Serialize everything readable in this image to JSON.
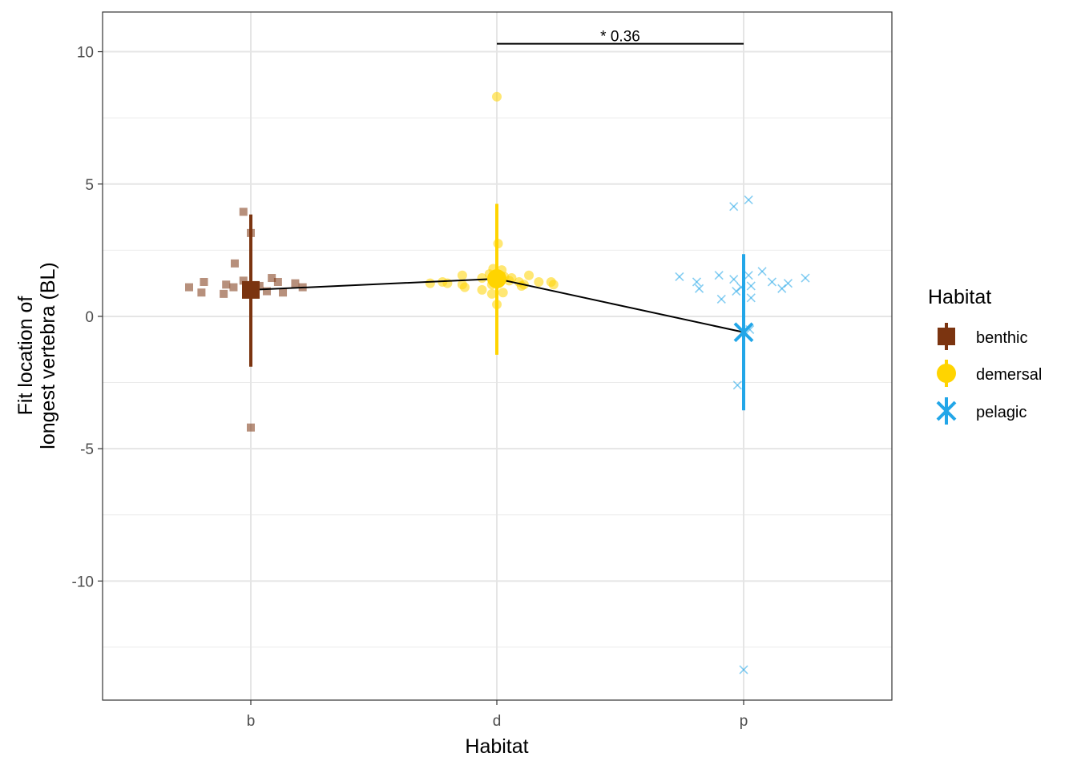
{
  "chart_data": {
    "type": "scatter",
    "title": "",
    "xlabel": "Habitat",
    "ylabel_lines": [
      "Fit location of",
      "longest vertebra (BL)"
    ],
    "categories": [
      "b",
      "d",
      "p"
    ],
    "ylim": [
      -14.5,
      11.5
    ],
    "yticks": [
      10,
      5,
      0,
      -5,
      -10
    ],
    "grid": true,
    "legend": {
      "title": "Habitat",
      "position": "right",
      "entries": [
        "benthic",
        "demersal",
        "pelagic"
      ]
    },
    "colors": {
      "benthic": "#7b3410",
      "demersal": "#ffd400",
      "pelagic": "#22a6e8"
    },
    "series": [
      {
        "name": "benthic",
        "category": "b",
        "marker": "square",
        "points": [
          {
            "x": -0.25,
            "y": 1.1
          },
          {
            "x": -0.2,
            "y": 0.9
          },
          {
            "x": -0.19,
            "y": 1.3
          },
          {
            "x": -0.11,
            "y": 0.85
          },
          {
            "x": -0.1,
            "y": 1.2
          },
          {
            "x": -0.07,
            "y": 1.1
          },
          {
            "x": -0.065,
            "y": 2.0
          },
          {
            "x": -0.03,
            "y": 1.35
          },
          {
            "x": -0.03,
            "y": 3.95
          },
          {
            "x": 0.0,
            "y": 3.15
          },
          {
            "x": 0.02,
            "y": 1.05
          },
          {
            "x": 0.035,
            "y": 1.15
          },
          {
            "x": 0.065,
            "y": 0.95
          },
          {
            "x": 0.085,
            "y": 1.45
          },
          {
            "x": 0.11,
            "y": 1.3
          },
          {
            "x": 0.13,
            "y": 0.9
          },
          {
            "x": 0.18,
            "y": 1.25
          },
          {
            "x": 0.21,
            "y": 1.1
          },
          {
            "x": 0.0,
            "y": -4.2
          }
        ],
        "mean": 1.0,
        "range": [
          -1.9,
          3.85
        ]
      },
      {
        "name": "demersal",
        "category": "d",
        "marker": "circle",
        "points": [
          {
            "x": -0.27,
            "y": 1.25
          },
          {
            "x": -0.22,
            "y": 1.3
          },
          {
            "x": -0.2,
            "y": 1.25
          },
          {
            "x": -0.14,
            "y": 1.55
          },
          {
            "x": -0.14,
            "y": 1.2
          },
          {
            "x": -0.13,
            "y": 1.1
          },
          {
            "x": -0.06,
            "y": 1.45
          },
          {
            "x": -0.06,
            "y": 1.0
          },
          {
            "x": -0.03,
            "y": 1.6
          },
          {
            "x": -0.02,
            "y": 1.2
          },
          {
            "x": -0.02,
            "y": 0.85
          },
          {
            "x": -0.015,
            "y": 1.8
          },
          {
            "x": 0.0,
            "y": 0.45
          },
          {
            "x": 0.0,
            "y": 8.3
          },
          {
            "x": 0.005,
            "y": 2.75
          },
          {
            "x": 0.02,
            "y": 1.75
          },
          {
            "x": 0.025,
            "y": 0.9
          },
          {
            "x": 0.03,
            "y": 1.5
          },
          {
            "x": 0.05,
            "y": 1.35
          },
          {
            "x": 0.06,
            "y": 1.45
          },
          {
            "x": 0.09,
            "y": 1.3
          },
          {
            "x": 0.1,
            "y": 1.15
          },
          {
            "x": 0.11,
            "y": 1.2
          },
          {
            "x": 0.13,
            "y": 1.55
          },
          {
            "x": 0.17,
            "y": 1.3
          },
          {
            "x": 0.22,
            "y": 1.3
          },
          {
            "x": 0.23,
            "y": 1.2
          }
        ],
        "mean": 1.42,
        "range": [
          -1.45,
          4.25
        ]
      },
      {
        "name": "pelagic",
        "category": "p",
        "marker": "x",
        "points": [
          {
            "x": -0.26,
            "y": 1.5
          },
          {
            "x": -0.19,
            "y": 1.3
          },
          {
            "x": -0.18,
            "y": 1.05
          },
          {
            "x": -0.1,
            "y": 1.55
          },
          {
            "x": -0.09,
            "y": 0.65
          },
          {
            "x": -0.04,
            "y": 4.15
          },
          {
            "x": -0.04,
            "y": 1.4
          },
          {
            "x": -0.03,
            "y": 0.95
          },
          {
            "x": -0.025,
            "y": -2.6
          },
          {
            "x": -0.01,
            "y": 1.1
          },
          {
            "x": 0.0,
            "y": -13.35
          },
          {
            "x": 0.02,
            "y": 4.4
          },
          {
            "x": 0.02,
            "y": 1.55
          },
          {
            "x": 0.025,
            "y": -0.5
          },
          {
            "x": 0.03,
            "y": 1.15
          },
          {
            "x": 0.03,
            "y": 0.7
          },
          {
            "x": 0.075,
            "y": 1.7
          },
          {
            "x": 0.115,
            "y": 1.3
          },
          {
            "x": 0.155,
            "y": 1.05
          },
          {
            "x": 0.18,
            "y": 1.25
          },
          {
            "x": 0.25,
            "y": 1.45
          }
        ],
        "mean": -0.6,
        "range": [
          -3.55,
          2.35
        ]
      }
    ],
    "annotation": {
      "text": "* 0.36",
      "from": "d",
      "to": "p",
      "y": 10.3
    }
  }
}
